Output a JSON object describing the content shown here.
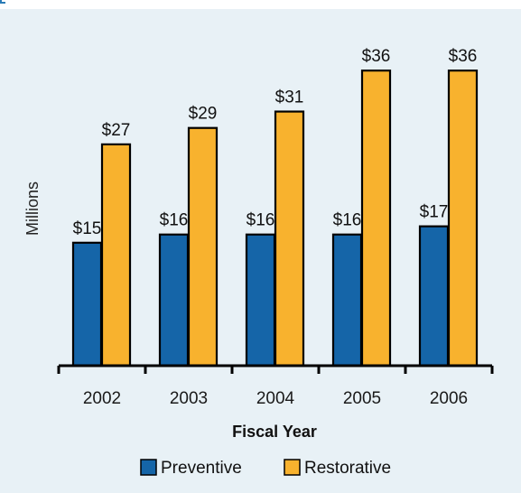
{
  "chart_data": {
    "type": "bar",
    "categories": [
      "2002",
      "2003",
      "2004",
      "2005",
      "2006"
    ],
    "series": [
      {
        "name": "Preventive",
        "values": [
          15,
          16,
          16,
          16,
          17
        ],
        "labels": [
          "$15",
          "$16",
          "$16",
          "$16",
          "$17"
        ],
        "color": "#1565a8"
      },
      {
        "name": "Restorative",
        "values": [
          27,
          29,
          31,
          36,
          36
        ],
        "labels": [
          "$27",
          "$29",
          "$31",
          "$36",
          "$36"
        ],
        "color": "#f8b22e"
      }
    ],
    "title": "",
    "xlabel": "Fiscal Year",
    "ylabel": "Millions",
    "ylim": [
      0,
      38
    ],
    "grid": false,
    "legend": "bottom"
  }
}
